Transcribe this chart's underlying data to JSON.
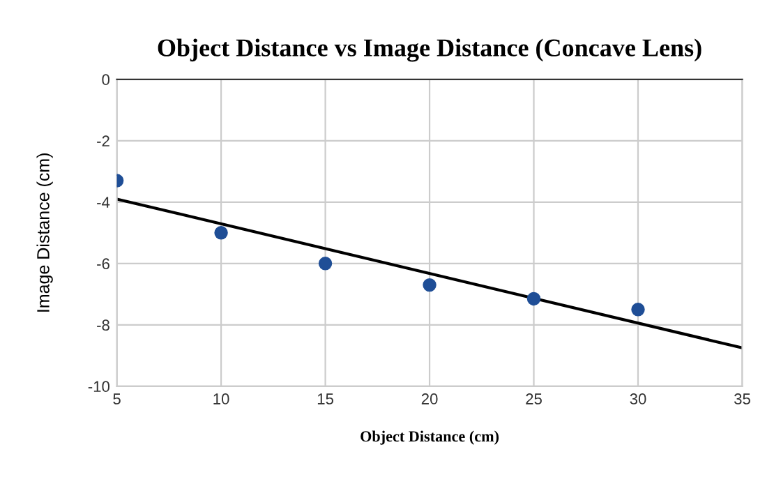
{
  "chart_data": {
    "type": "scatter",
    "title": "Object Distance vs Image Distance (Concave Lens)",
    "xlabel": "Object Distance (cm)",
    "ylabel": "Image Distance (cm)",
    "x": [
      5,
      10,
      15,
      20,
      25,
      30
    ],
    "series": [
      {
        "color": "#1f4e96",
        "values": [
          -3.3,
          -5.0,
          -6.0,
          -6.7,
          -7.15,
          -7.5
        ],
        "marker": "circle"
      },
      {
        "type": "line",
        "color": "#000000",
        "x": [
          5,
          35
        ],
        "values": [
          -3.9,
          -8.75
        ],
        "marker": "none",
        "line_style": "solid"
      }
    ],
    "xlim": [
      5,
      35
    ],
    "xticks": [
      5,
      10,
      15,
      20,
      25,
      30,
      35
    ],
    "ylim": [
      -10,
      0
    ],
    "yticks": [
      -10,
      -8,
      -6,
      -4,
      -2,
      0
    ],
    "grid": true,
    "legend": false
  }
}
